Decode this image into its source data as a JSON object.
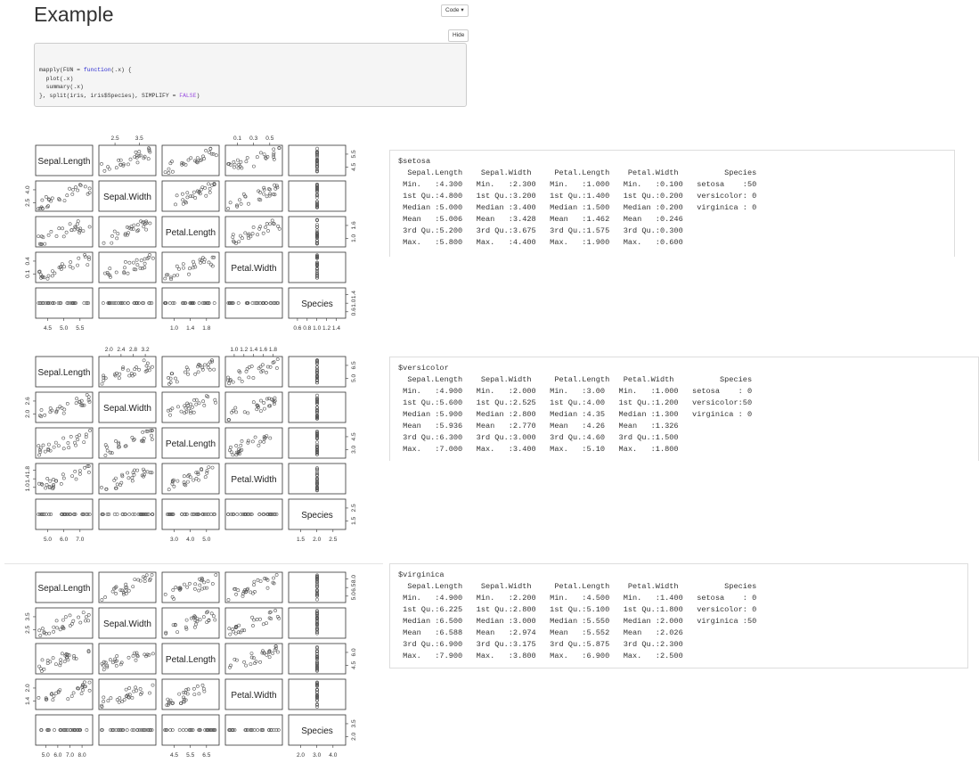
{
  "page": {
    "title": "Example",
    "code_button": "Code",
    "hide_button": "Hide"
  },
  "code": {
    "lines": [
      [
        "mapply(FUN = ",
        "function",
        "(.x) {"
      ],
      [
        "  plot(.x)",
        "",
        ""
      ],
      [
        "  summary(.x)",
        "",
        ""
      ],
      [
        "}, split(iris, iris$Species), SIMPLIFY = ",
        "",
        "FALSE",
        ")"
      ]
    ]
  },
  "pairs_plots": [
    {
      "variables": [
        "Sepal.Length",
        "Sepal.Width",
        "Petal.Length",
        "Petal.Width",
        "Species"
      ],
      "top_ticks": {
        "1": [
          "2.5",
          "3.5"
        ],
        "3": [
          "0.1",
          "0.3",
          "0.5"
        ]
      },
      "bottom_ticks": {
        "0": [
          "4.5",
          "5.0",
          "5.5"
        ],
        "2": [
          "1.0",
          "1.4",
          "1.8"
        ],
        "4": [
          "0.6",
          "0.8",
          "1.0",
          "1.2",
          "1.4"
        ]
      },
      "left_ticks": {
        "1": [
          "2.5",
          "4.0"
        ],
        "3": [
          "0.1",
          "0.4"
        ]
      },
      "right_ticks": {
        "0": [
          "4.5",
          "5.5"
        ],
        "2": [
          "1.0",
          "1.6"
        ],
        "4": [
          "0.6",
          "1.0",
          "1.4"
        ]
      }
    },
    {
      "variables": [
        "Sepal.Length",
        "Sepal.Width",
        "Petal.Length",
        "Petal.Width",
        "Species"
      ],
      "top_ticks": {
        "1": [
          "2.0",
          "2.4",
          "2.8",
          "3.2"
        ],
        "3": [
          "1.0",
          "1.2",
          "1.4",
          "1.6",
          "1.8"
        ]
      },
      "bottom_ticks": {
        "0": [
          "5.0",
          "6.0",
          "7.0"
        ],
        "2": [
          "3.0",
          "4.0",
          "5.0"
        ],
        "4": [
          "1.5",
          "2.0",
          "2.5"
        ]
      },
      "left_ticks": {
        "1": [
          "2.0",
          "2.6"
        ],
        "3": [
          "1.0",
          "1.4",
          "1.8"
        ]
      },
      "right_ticks": {
        "0": [
          "5.0",
          "6.5"
        ],
        "2": [
          "3.0",
          "4.5"
        ],
        "4": [
          "1.5",
          "2.5"
        ]
      }
    },
    {
      "variables": [
        "Sepal.Length",
        "Sepal.Width",
        "Petal.Length",
        "Petal.Width",
        "Species"
      ],
      "top_ticks": {},
      "bottom_ticks": {
        "0": [
          "5.0",
          "6.0",
          "7.0",
          "8.0"
        ],
        "2": [
          "4.5",
          "5.5",
          "6.5"
        ],
        "4": [
          "2.0",
          "3.0",
          "4.0"
        ]
      },
      "left_ticks": {
        "1": [
          "2.5",
          "3.5"
        ],
        "3": [
          "1.4",
          "2.0"
        ]
      },
      "right_ticks": {
        "0": [
          "5.0",
          "6.5",
          "8.0"
        ],
        "2": [
          "4.5",
          "6.0"
        ],
        "4": [
          "2.0",
          "3.5"
        ]
      }
    }
  ],
  "summaries": [
    {
      "name": "$setosa",
      "lines": [
        "  Sepal.Length    Sepal.Width     Petal.Length    Petal.Width          Species  ",
        " Min.   :4.300   Min.   :2.300   Min.   :1.000   Min.   :0.100   setosa    :50  ",
        " 1st Qu.:4.800   1st Qu.:3.200   1st Qu.:1.400   1st Qu.:0.200   versicolor: 0  ",
        " Median :5.000   Median :3.400   Median :1.500   Median :0.200   virginica : 0  ",
        " Mean   :5.006   Mean   :3.428   Mean   :1.462   Mean   :0.246                  ",
        " 3rd Qu.:5.200   3rd Qu.:3.675   3rd Qu.:1.575   3rd Qu.:0.300                  ",
        " Max.   :5.800   Max.   :4.400   Max.   :1.900   Max.   :0.600                  "
      ]
    },
    {
      "name": "$versicolor",
      "lines": [
        "  Sepal.Length    Sepal.Width     Petal.Length   Petal.Width          Species  ",
        " Min.   :4.900   Min.   :2.000   Min.   :3.00   Min.   :1.000   setosa    : 0  ",
        " 1st Qu.:5.600   1st Qu.:2.525   1st Qu.:4.00   1st Qu.:1.200   versicolor:50  ",
        " Median :5.900   Median :2.800   Median :4.35   Median :1.300   virginica : 0  ",
        " Mean   :5.936   Mean   :2.770   Mean   :4.26   Mean   :1.326                  ",
        " 3rd Qu.:6.300   3rd Qu.:3.000   3rd Qu.:4.60   3rd Qu.:1.500                  ",
        " Max.   :7.000   Max.   :3.400   Max.   :5.10   Max.   :1.800                  "
      ]
    },
    {
      "name": "$virginica",
      "lines": [
        "  Sepal.Length    Sepal.Width     Petal.Length    Petal.Width          Species  ",
        " Min.   :4.900   Min.   :2.200   Min.   :4.500   Min.   :1.400   setosa    : 0  ",
        " 1st Qu.:6.225   1st Qu.:2.800   1st Qu.:5.100   1st Qu.:1.800   versicolor: 0  ",
        " Median :6.500   Median :3.000   Median :5.550   Median :2.000   virginica :50  ",
        " Mean   :6.588   Mean   :2.974   Mean   :5.552   Mean   :2.026                  ",
        " 3rd Qu.:6.900   3rd Qu.:3.175   3rd Qu.:5.875   3rd Qu.:2.300                  ",
        " Max.   :7.900   Max.   :3.800   Max.   :6.900   Max.   :2.500                  "
      ]
    }
  ],
  "colors": {
    "code_bg": "#f5f5f5",
    "keyword": "#2a2ad0",
    "constant": "#9a4ee0",
    "border": "#cccccc"
  }
}
